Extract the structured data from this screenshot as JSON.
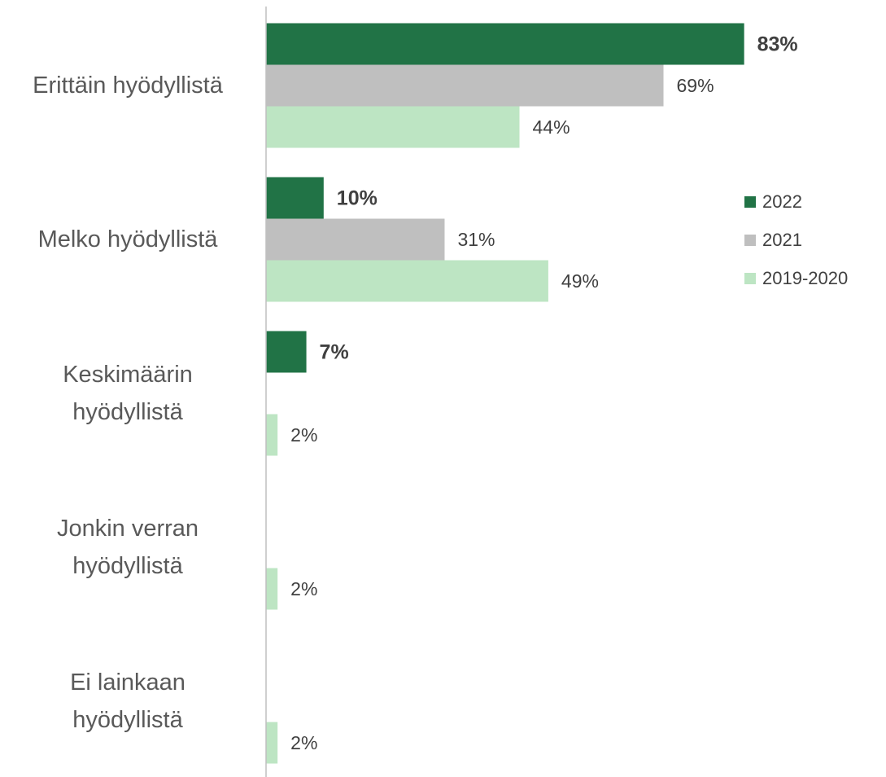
{
  "chart_data": {
    "type": "bar",
    "orientation": "horizontal",
    "categories": [
      "Erittäin hyödyllistä",
      "Melko hyödyllistä",
      "Keskimäärin hyödyllistä",
      "Jonkin verran hyödyllistä",
      "Ei lainkaan hyödyllistä"
    ],
    "series": [
      {
        "name": "2022",
        "color": "#217346",
        "values": [
          83,
          10,
          7,
          null,
          null
        ],
        "value_labels": [
          "83%",
          "10%",
          "7%",
          null,
          null
        ]
      },
      {
        "name": "2021",
        "color": "#bfbfbf",
        "values": [
          69,
          31,
          null,
          null,
          null
        ],
        "value_labels": [
          "69%",
          "31%",
          null,
          null,
          null
        ]
      },
      {
        "name": "2019-2020",
        "color": "#bde5c3",
        "values": [
          44,
          49,
          2,
          2,
          2
        ],
        "value_labels": [
          "44%",
          "49%",
          "2%",
          "2%",
          "2%"
        ]
      }
    ],
    "xlim": [
      0,
      100
    ],
    "legend": "right"
  }
}
